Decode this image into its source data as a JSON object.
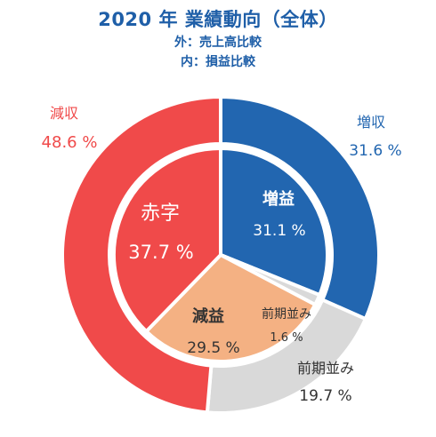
{
  "header": {
    "title": "2020 年  業績動向（全体）",
    "subtitle_outer": "外：売上高比較",
    "subtitle_inner": "内：損益比較"
  },
  "colors": {
    "title": "#1F5FA8",
    "subtitle": "#1F5FA8",
    "sales_decrease": "#F04A4A",
    "sales_increase": "#2266B0",
    "sales_flat": "#D9D9D9",
    "profit_deficit": "#F04A4A",
    "profit_increase": "#2266B0",
    "profit_decrease": "#F4B183",
    "profit_flat": "#D9D9D9",
    "outer_label_decrease": "#F04A4A",
    "outer_label_increase": "#2266B0",
    "outer_label_flat": "#333333"
  },
  "chart_data": {
    "type": "pie",
    "subtype": "nested-donut",
    "title": "2020 年  業績動向（全体）",
    "rings": [
      {
        "name": "外：売上高比較",
        "slices": [
          {
            "label": "増収",
            "value": 31.6,
            "value_text": "31.6 %",
            "color": "#2266B0"
          },
          {
            "label": "前期並み",
            "value": 19.7,
            "value_text": "19.7 %",
            "color": "#D9D9D9"
          },
          {
            "label": "減収",
            "value": 48.6,
            "value_text": "48.6 %",
            "color": "#F04A4A"
          }
        ]
      },
      {
        "name": "内：損益比較",
        "slices": [
          {
            "label": "増益",
            "value": 31.1,
            "value_text": "31.1 %",
            "color": "#2266B0"
          },
          {
            "label": "前期並み",
            "value": 1.6,
            "value_text": "1.6 %",
            "color": "#D9D9D9"
          },
          {
            "label": "減益",
            "value": 29.5,
            "value_text": "29.5 %",
            "color": "#F4B183"
          },
          {
            "label": "赤字",
            "value": 37.7,
            "value_text": "37.7 %",
            "color": "#F04A4A"
          }
        ]
      }
    ]
  }
}
